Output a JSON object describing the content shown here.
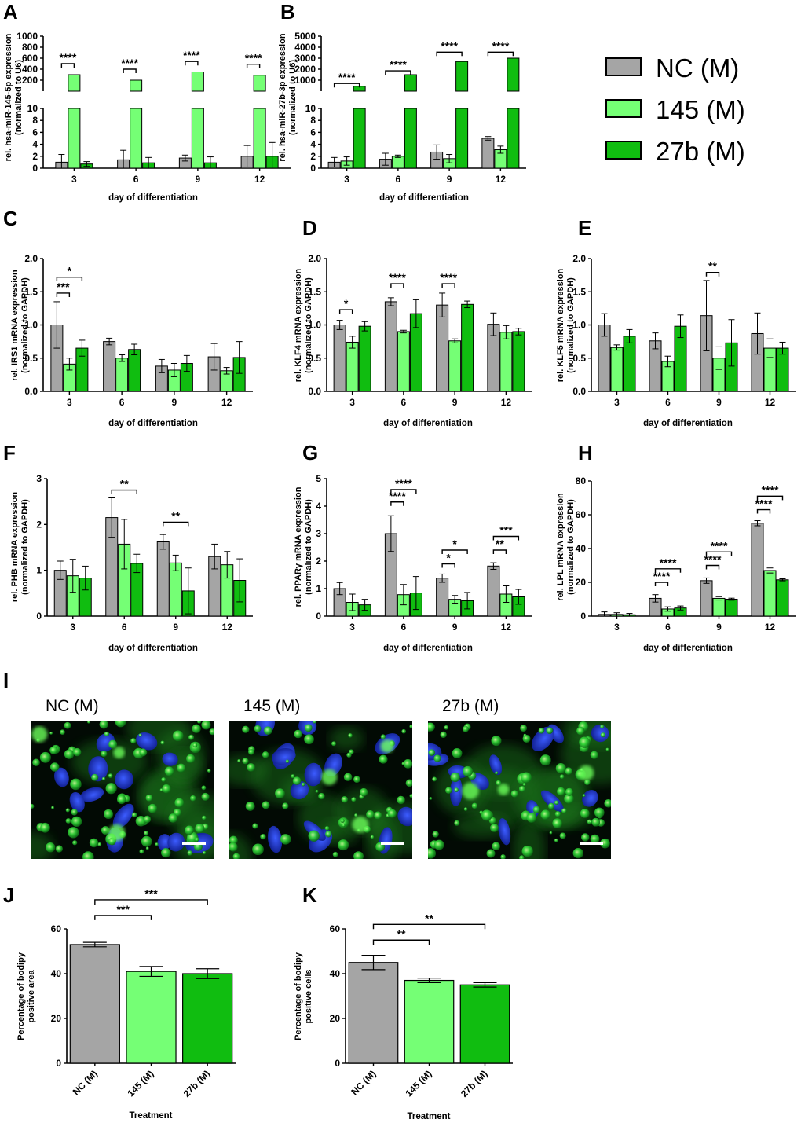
{
  "legend": [
    "NC (M)",
    "145 (M)",
    "27b (M)"
  ],
  "colors": {
    "NC": "#a5a5a5",
    "145": "#75ff75",
    "27b": "#10bd10"
  },
  "micrographs": {
    "panel": "I",
    "titles": [
      "NC (M)",
      "145 (M)",
      "27b (M)"
    ],
    "stain": {
      "nuclei": "blue",
      "lipid": "green"
    }
  },
  "chart_data": [
    {
      "id": "A",
      "type": "bar",
      "xlabel": "day of differentiation",
      "ylabel": [
        "rel. hsa-miR-145-5p expression",
        "(normalized to U6)"
      ],
      "broken_axis": {
        "lower": [
          0,
          10
        ],
        "upper": [
          0,
          1000
        ],
        "lower_ticks": [
          0,
          2,
          4,
          6,
          8,
          10
        ],
        "upper_ticks": [
          200,
          400,
          600,
          800,
          1000
        ]
      },
      "categories": [
        "3",
        "6",
        "9",
        "12"
      ],
      "series": [
        {
          "name": "NC (M)",
          "values": [
            1.0,
            1.4,
            1.7,
            2.0
          ],
          "errors": [
            1.3,
            1.6,
            0.5,
            1.8
          ]
        },
        {
          "name": "145 (M)",
          "values": [
            300,
            200,
            350,
            290
          ],
          "errors": [
            5,
            5,
            5,
            5
          ]
        },
        {
          "name": "27b (M)",
          "values": [
            0.7,
            0.9,
            0.9,
            2.0
          ],
          "errors": [
            0.4,
            0.9,
            1.0,
            2.3
          ]
        }
      ],
      "significance": [
        {
          "label": "****",
          "category": 0,
          "from": 0,
          "to": 1,
          "y": 500
        },
        {
          "label": "****",
          "category": 1,
          "from": 0,
          "to": 1,
          "y": 400
        },
        {
          "label": "****",
          "category": 2,
          "from": 0,
          "to": 1,
          "y": 540
        },
        {
          "label": "****",
          "category": 3,
          "from": 0,
          "to": 1,
          "y": 490
        }
      ]
    },
    {
      "id": "B",
      "type": "bar",
      "xlabel": "day of differentiation",
      "ylabel": [
        "rel. hsa-miR-27b-3p expression",
        "(normalized to U6)"
      ],
      "broken_axis": {
        "lower": [
          0,
          10
        ],
        "upper": [
          0,
          5000
        ],
        "lower_ticks": [
          0,
          2,
          4,
          6,
          8,
          10
        ],
        "upper_ticks": [
          1000,
          2000,
          3000,
          4000,
          5000
        ]
      },
      "categories": [
        "3",
        "6",
        "9",
        "12"
      ],
      "series": [
        {
          "name": "NC (M)",
          "values": [
            1.0,
            1.5,
            2.7,
            5.0
          ],
          "errors": [
            0.8,
            1.0,
            1.2,
            0.3
          ]
        },
        {
          "name": "145 (M)",
          "values": [
            1.2,
            2.0,
            1.6,
            3.1
          ],
          "errors": [
            0.7,
            0.2,
            0.7,
            0.6
          ]
        },
        {
          "name": "27b (M)",
          "values": [
            450,
            1500,
            2700,
            3000
          ],
          "errors": [
            10,
            10,
            10,
            10
          ]
        }
      ],
      "significance": [
        {
          "label": "****",
          "category": 0,
          "from": 0,
          "to": 2,
          "y": 700
        },
        {
          "label": "****",
          "category": 1,
          "from": 0,
          "to": 2,
          "y": 1850
        },
        {
          "label": "****",
          "category": 2,
          "from": 0,
          "to": 2,
          "y": 3550
        },
        {
          "label": "****",
          "category": 3,
          "from": 0,
          "to": 2,
          "y": 3550
        }
      ]
    },
    {
      "id": "C",
      "type": "bar",
      "xlabel": "day of differentiation",
      "ylabel": [
        "rel. IRS1 mRNA expression",
        "(normalized to GAPDH)"
      ],
      "ylim": [
        0,
        2.0
      ],
      "ticks": [
        "0.0",
        "0.5",
        "1.0",
        "1.5",
        "2.0"
      ],
      "categories": [
        "3",
        "6",
        "9",
        "12"
      ],
      "series": [
        {
          "name": "NC (M)",
          "values": [
            1.0,
            0.75,
            0.38,
            0.52
          ],
          "errors": [
            0.35,
            0.05,
            0.1,
            0.2
          ]
        },
        {
          "name": "145 (M)",
          "values": [
            0.41,
            0.5,
            0.32,
            0.31
          ],
          "errors": [
            0.09,
            0.05,
            0.1,
            0.05
          ]
        },
        {
          "name": "27b (M)",
          "values": [
            0.65,
            0.63,
            0.42,
            0.51
          ],
          "errors": [
            0.12,
            0.08,
            0.12,
            0.24
          ]
        }
      ],
      "significance": [
        {
          "label": "***",
          "category": 0,
          "from": 0,
          "to": 1,
          "y": 1.48
        },
        {
          "label": "*",
          "category": 0,
          "from": 0,
          "to": 2,
          "y": 1.72
        }
      ]
    },
    {
      "id": "D",
      "type": "bar",
      "xlabel": "day of differentiation",
      "ylabel": [
        "rel. KLF4 mRNA expression",
        "(normalized to GAPDH)"
      ],
      "ylim": [
        0,
        2.0
      ],
      "ticks": [
        "0.0",
        "0.5",
        "1.0",
        "1.5",
        "2.0"
      ],
      "categories": [
        "3",
        "6",
        "9",
        "12"
      ],
      "series": [
        {
          "name": "NC (M)",
          "values": [
            1.0,
            1.35,
            1.3,
            1.01
          ],
          "errors": [
            0.07,
            0.06,
            0.18,
            0.17
          ]
        },
        {
          "name": "145 (M)",
          "values": [
            0.74,
            0.9,
            0.76,
            0.89
          ],
          "errors": [
            0.09,
            0.02,
            0.03,
            0.1
          ]
        },
        {
          "name": "27b (M)",
          "values": [
            0.98,
            1.17,
            1.31,
            0.9
          ],
          "errors": [
            0.07,
            0.21,
            0.05,
            0.05
          ]
        }
      ],
      "significance": [
        {
          "label": "*",
          "category": 0,
          "from": 0,
          "to": 1,
          "y": 1.23
        },
        {
          "label": "****",
          "category": 1,
          "from": 0,
          "to": 1,
          "y": 1.62
        },
        {
          "label": "****",
          "category": 2,
          "from": 0,
          "to": 1,
          "y": 1.62
        }
      ]
    },
    {
      "id": "E",
      "type": "bar",
      "xlabel": "day of differentiation",
      "ylabel": [
        "rel. KLF5 mRNA expression",
        "(normalized to GAPDH)"
      ],
      "ylim": [
        0,
        2.0
      ],
      "ticks": [
        "0.0",
        "0.5",
        "1.0",
        "1.5",
        "2.0"
      ],
      "categories": [
        "3",
        "6",
        "9",
        "12"
      ],
      "series": [
        {
          "name": "NC (M)",
          "values": [
            1.0,
            0.76,
            1.14,
            0.87
          ],
          "errors": [
            0.17,
            0.12,
            0.53,
            0.31
          ]
        },
        {
          "name": "145 (M)",
          "values": [
            0.66,
            0.45,
            0.5,
            0.65
          ],
          "errors": [
            0.04,
            0.08,
            0.17,
            0.14
          ]
        },
        {
          "name": "27b (M)",
          "values": [
            0.83,
            0.98,
            0.73,
            0.65
          ],
          "errors": [
            0.1,
            0.17,
            0.35,
            0.09
          ]
        }
      ],
      "significance": [
        {
          "label": "**",
          "category": 2,
          "from": 0,
          "to": 1,
          "y": 1.79
        }
      ]
    },
    {
      "id": "F",
      "type": "bar",
      "xlabel": "day of differentiation",
      "ylabel": [
        "rel. PHB mRNA expression",
        "(normalized to GAPDH)"
      ],
      "ylim": [
        0,
        3
      ],
      "ticks": [
        "0",
        "1",
        "2",
        "3"
      ],
      "categories": [
        "3",
        "6",
        "9",
        "12"
      ],
      "series": [
        {
          "name": "NC (M)",
          "values": [
            1.0,
            2.15,
            1.62,
            1.3
          ],
          "errors": [
            0.2,
            0.43,
            0.16,
            0.27
          ]
        },
        {
          "name": "145 (M)",
          "values": [
            0.88,
            1.57,
            1.16,
            1.12
          ],
          "errors": [
            0.36,
            0.54,
            0.17,
            0.29
          ]
        },
        {
          "name": "27b (M)",
          "values": [
            0.83,
            1.15,
            0.55,
            0.78
          ],
          "errors": [
            0.26,
            0.2,
            0.5,
            0.47
          ]
        }
      ],
      "significance": [
        {
          "label": "**",
          "category": 1,
          "from": 0,
          "to": 2,
          "y": 2.75
        },
        {
          "label": "**",
          "category": 2,
          "from": 0,
          "to": 2,
          "y": 2.05
        }
      ]
    },
    {
      "id": "G",
      "type": "bar",
      "xlabel": "day of differentiation",
      "ylabel": [
        "rel. PPARγ mRNA expression",
        "(normalized to GAPDH)"
      ],
      "ylim": [
        0,
        5
      ],
      "ticks": [
        "0",
        "1",
        "2",
        "3",
        "4",
        "5"
      ],
      "categories": [
        "3",
        "6",
        "9",
        "12"
      ],
      "series": [
        {
          "name": "NC (M)",
          "values": [
            1.0,
            3.0,
            1.38,
            1.82
          ],
          "errors": [
            0.22,
            0.65,
            0.15,
            0.12
          ]
        },
        {
          "name": "145 (M)",
          "values": [
            0.5,
            0.78,
            0.61,
            0.8
          ],
          "errors": [
            0.3,
            0.37,
            0.14,
            0.3
          ]
        },
        {
          "name": "27b (M)",
          "values": [
            0.41,
            0.84,
            0.56,
            0.7
          ],
          "errors": [
            0.2,
            0.6,
            0.3,
            0.27
          ]
        }
      ],
      "significance": [
        {
          "label": "****",
          "category": 1,
          "from": 0,
          "to": 1,
          "y": 4.15
        },
        {
          "label": "****",
          "category": 1,
          "from": 0,
          "to": 2,
          "y": 4.6
        },
        {
          "label": "*",
          "category": 2,
          "from": 0,
          "to": 1,
          "y": 1.9
        },
        {
          "label": "*",
          "category": 2,
          "from": 0,
          "to": 2,
          "y": 2.4
        },
        {
          "label": "**",
          "category": 3,
          "from": 0,
          "to": 1,
          "y": 2.4
        },
        {
          "label": "***",
          "category": 3,
          "from": 0,
          "to": 2,
          "y": 2.9
        }
      ]
    },
    {
      "id": "H",
      "type": "bar",
      "xlabel": "day of differentiation",
      "ylabel": [
        "rel. LPL mRNA expression",
        "(normalized to GAPDH)"
      ],
      "ylim": [
        0,
        80
      ],
      "ticks": [
        "0",
        "20",
        "40",
        "60",
        "80"
      ],
      "categories": [
        "3",
        "6",
        "9",
        "12"
      ],
      "series": [
        {
          "name": "NC (M)",
          "values": [
            1.0,
            10.5,
            21.0,
            55.0
          ],
          "errors": [
            1.5,
            2.2,
            1.6,
            1.5
          ]
        },
        {
          "name": "145 (M)",
          "values": [
            1.0,
            4.2,
            10.5,
            27.0
          ],
          "errors": [
            1.0,
            1.3,
            1.0,
            1.5
          ]
        },
        {
          "name": "27b (M)",
          "values": [
            0.8,
            4.8,
            10.0,
            21.5
          ],
          "errors": [
            0.8,
            1.2,
            0.6,
            0.6
          ]
        }
      ],
      "significance": [
        {
          "label": "****",
          "category": 1,
          "from": 0,
          "to": 1,
          "y": 20
        },
        {
          "label": "****",
          "category": 1,
          "from": 0,
          "to": 2,
          "y": 28
        },
        {
          "label": "****",
          "category": 2,
          "from": 0,
          "to": 1,
          "y": 30
        },
        {
          "label": "****",
          "category": 2,
          "from": 0,
          "to": 2,
          "y": 38
        },
        {
          "label": "****",
          "category": 3,
          "from": 0,
          "to": 1,
          "y": 63
        },
        {
          "label": "****",
          "category": 3,
          "from": 0,
          "to": 2,
          "y": 71
        }
      ]
    },
    {
      "id": "J",
      "type": "bar",
      "xlabel": "Treatment",
      "ylabel": [
        "Percentage of bodipy",
        "positive area"
      ],
      "ylim": [
        0,
        60
      ],
      "ticks": [
        "0",
        "20",
        "40",
        "60"
      ],
      "categories": [
        "NC (M)",
        "145 (M)",
        "27b (M)"
      ],
      "values": [
        53,
        41,
        40
      ],
      "errors": [
        1.0,
        2.2,
        2.2
      ],
      "significance": [
        {
          "label": "***",
          "from": 0,
          "to": 1,
          "y": 66
        },
        {
          "label": "***",
          "from": 0,
          "to": 2,
          "y": 73
        }
      ]
    },
    {
      "id": "K",
      "type": "bar",
      "xlabel": "Treatment",
      "ylabel": [
        "Percentage of bodipy",
        "positive cells"
      ],
      "ylim": [
        0,
        60
      ],
      "ticks": [
        "0",
        "20",
        "40",
        "60"
      ],
      "categories": [
        "NC (M)",
        "145 (M)",
        "27b (M)"
      ],
      "values": [
        45,
        37,
        35
      ],
      "errors": [
        3.2,
        1.0,
        1.0
      ],
      "significance": [
        {
          "label": "**",
          "from": 0,
          "to": 1,
          "y": 55
        },
        {
          "label": "**",
          "from": 0,
          "to": 2,
          "y": 62
        }
      ]
    }
  ]
}
